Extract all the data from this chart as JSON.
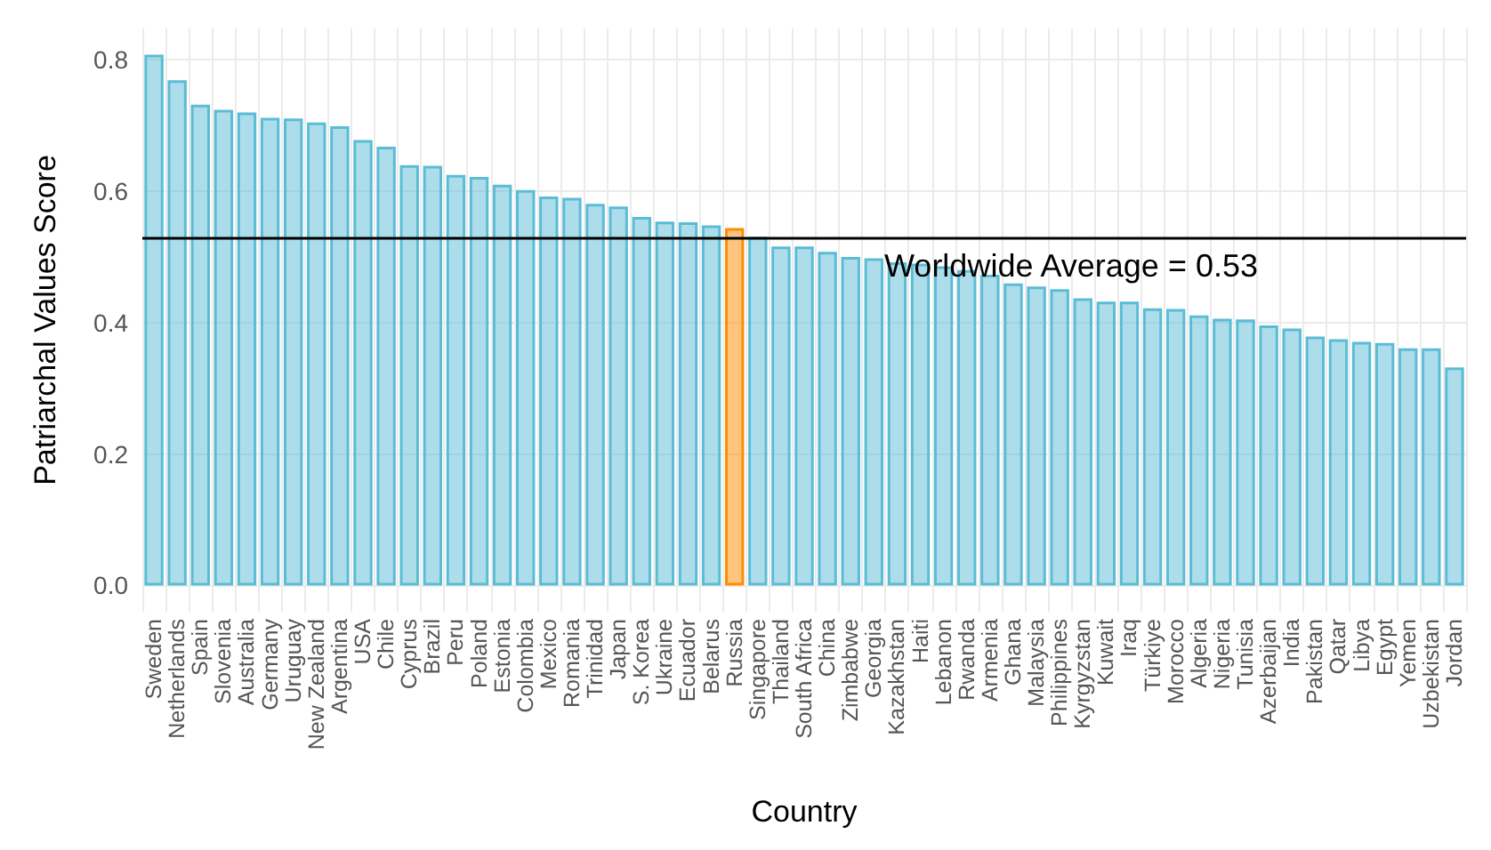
{
  "chart_data": {
    "type": "bar",
    "xlabel": "Country",
    "ylabel": "Patriarchal Values Score",
    "categories": [
      "Sweden",
      "Netherlands",
      "Spain",
      "Slovenia",
      "Australia",
      "Germany",
      "Uruguay",
      "New Zealand",
      "Argentina",
      "USA",
      "Chile",
      "Cyprus",
      "Brazil",
      "Peru",
      "Poland",
      "Estonia",
      "Colombia",
      "Mexico",
      "Romania",
      "Trinidad",
      "Japan",
      "S. Korea",
      "Ukraine",
      "Ecuador",
      "Belarus",
      "Russia",
      "Singapore",
      "Thailand",
      "South Africa",
      "China",
      "Zimbabwe",
      "Georgia",
      "Kazakhstan",
      "Haiti",
      "Lebanon",
      "Rwanda",
      "Armenia",
      "Ghana",
      "Malaysia",
      "Philippines",
      "Kyrgyzstan",
      "Kuwait",
      "Iraq",
      "Türkiye",
      "Morocco",
      "Algeria",
      "Nigeria",
      "Tunisia",
      "Azerbaijan",
      "India",
      "Pakistan",
      "Qatar",
      "Libya",
      "Egypt",
      "Yemen",
      "Uzbekistan",
      "Jordan"
    ],
    "values": [
      0.808,
      0.769,
      0.732,
      0.724,
      0.72,
      0.712,
      0.711,
      0.705,
      0.699,
      0.678,
      0.668,
      0.64,
      0.639,
      0.625,
      0.622,
      0.61,
      0.602,
      0.592,
      0.59,
      0.581,
      0.577,
      0.561,
      0.554,
      0.553,
      0.548,
      0.544,
      0.531,
      0.516,
      0.516,
      0.508,
      0.5,
      0.498,
      0.492,
      0.49,
      0.486,
      0.48,
      0.473,
      0.46,
      0.455,
      0.451,
      0.437,
      0.432,
      0.432,
      0.422,
      0.421,
      0.411,
      0.406,
      0.405,
      0.396,
      0.391,
      0.379,
      0.375,
      0.371,
      0.369,
      0.361,
      0.361,
      0.332
    ],
    "colors": [
      "#5bbcd6",
      "#5bbcd6",
      "#5bbcd6",
      "#5bbcd6",
      "#5bbcd6",
      "#5bbcd6",
      "#5bbcd6",
      "#5bbcd6",
      "#5bbcd6",
      "#5bbcd6",
      "#5bbcd6",
      "#5bbcd6",
      "#5bbcd6",
      "#5bbcd6",
      "#5bbcd6",
      "#5bbcd6",
      "#5bbcd6",
      "#5bbcd6",
      "#5bbcd6",
      "#5bbcd6",
      "#5bbcd6",
      "#5bbcd6",
      "#5bbcd6",
      "#5bbcd6",
      "#5bbcd6",
      "#ff8c00",
      "#5bbcd6",
      "#5bbcd6",
      "#5bbcd6",
      "#5bbcd6",
      "#5bbcd6",
      "#5bbcd6",
      "#5bbcd6",
      "#5bbcd6",
      "#5bbcd6",
      "#5bbcd6",
      "#5bbcd6",
      "#5bbcd6",
      "#5bbcd6",
      "#5bbcd6",
      "#5bbcd6",
      "#5bbcd6",
      "#5bbcd6",
      "#5bbcd6",
      "#5bbcd6",
      "#5bbcd6",
      "#5bbcd6",
      "#5bbcd6",
      "#5bbcd6",
      "#5bbcd6",
      "#5bbcd6",
      "#5bbcd6",
      "#5bbcd6",
      "#5bbcd6",
      "#5bbcd6",
      "#5bbcd6",
      "#5bbcd6"
    ],
    "ylim": [
      -0.04,
      0.848
    ],
    "yticks": [
      {
        "value": 0,
        "label": "0.0"
      },
      {
        "value": 0.2,
        "label": "0.2"
      },
      {
        "value": 0.4,
        "label": "0.4"
      },
      {
        "value": 0.6,
        "label": "0.6"
      },
      {
        "value": 0.8,
        "label": "0.8"
      }
    ],
    "ref_lines": [
      {
        "axis": "y",
        "value": 0.53,
        "label": "Worldwide Average = 0.53",
        "color": "#000000"
      }
    ],
    "grid": true
  }
}
